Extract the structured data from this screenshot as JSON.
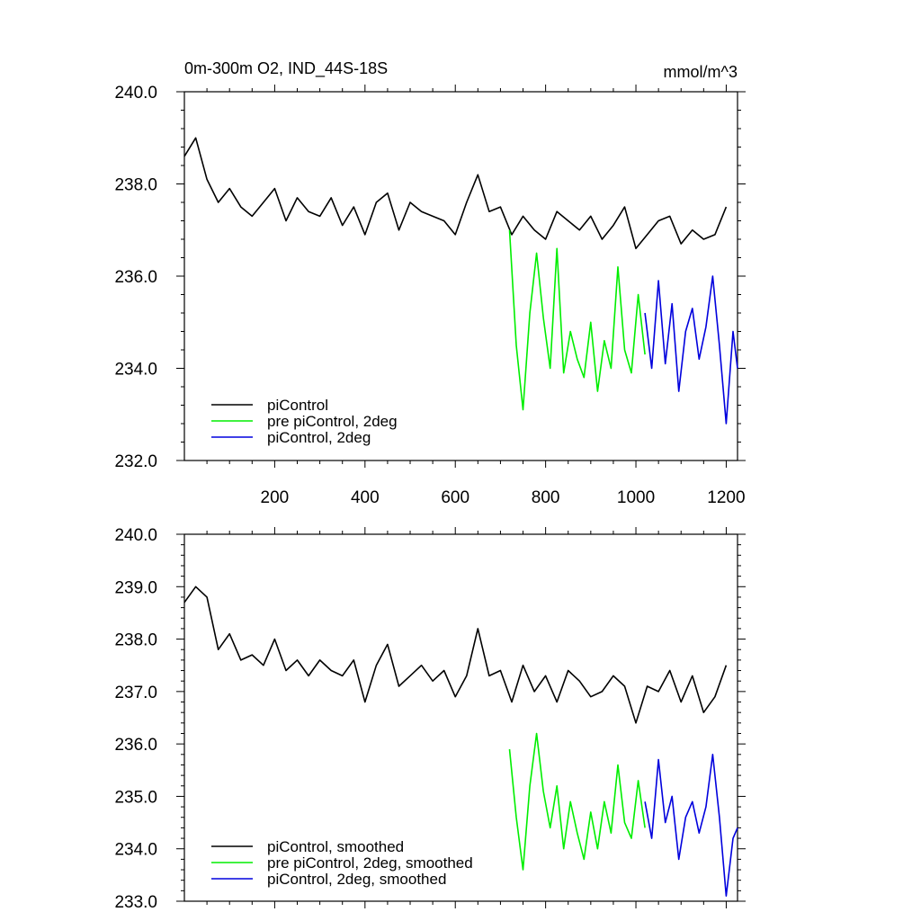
{
  "chart_data": [
    {
      "type": "line",
      "title": "0m-300m O2, IND_44S-18S",
      "units": "mmol/m^3",
      "xlim": [
        0,
        1225
      ],
      "ylim": [
        232.0,
        240.0
      ],
      "xticks": [
        200,
        400,
        600,
        800,
        1000,
        1200
      ],
      "xtick_labels": [
        "200",
        "400",
        "600",
        "800",
        "1000",
        "1200"
      ],
      "yticks": [
        232.0,
        234.0,
        236.0,
        238.0,
        240.0
      ],
      "ytick_labels": [
        "232.0",
        "234.0",
        "236.0",
        "238.0",
        "240.0"
      ],
      "legend": {
        "position": "bottom-left"
      },
      "grid": false,
      "series": [
        {
          "name": "piControl",
          "color": "#000000",
          "x": [
            0,
            25,
            50,
            75,
            100,
            125,
            150,
            175,
            200,
            225,
            250,
            275,
            300,
            325,
            350,
            375,
            400,
            425,
            450,
            475,
            500,
            525,
            550,
            575,
            600,
            625,
            650,
            675,
            700,
            725,
            750,
            775,
            800,
            825,
            850,
            875,
            900,
            925,
            950,
            975,
            1000,
            1025,
            1050,
            1075,
            1100,
            1125,
            1150,
            1175,
            1200
          ],
          "y": [
            238.6,
            239.0,
            238.1,
            237.6,
            237.9,
            237.5,
            237.3,
            237.6,
            237.9,
            237.2,
            237.7,
            237.4,
            237.3,
            237.7,
            237.1,
            237.5,
            236.9,
            237.6,
            237.8,
            237.0,
            237.6,
            237.4,
            237.3,
            237.2,
            236.9,
            237.6,
            238.2,
            237.4,
            237.5,
            236.9,
            237.3,
            237.0,
            236.8,
            237.4,
            237.2,
            237.0,
            237.3,
            236.8,
            237.1,
            237.5,
            236.6,
            236.9,
            237.2,
            237.3,
            236.7,
            237.0,
            236.8,
            236.9,
            237.5
          ]
        },
        {
          "name": "pre piControl, 2deg",
          "color": "#00ee00",
          "x": [
            720,
            735,
            750,
            765,
            780,
            795,
            810,
            825,
            840,
            855,
            870,
            885,
            900,
            915,
            930,
            945,
            960,
            975,
            990,
            1005,
            1020
          ],
          "y": [
            237.0,
            234.5,
            233.1,
            235.2,
            236.5,
            235.1,
            234.0,
            236.6,
            233.9,
            234.8,
            234.2,
            233.8,
            235.0,
            233.5,
            234.6,
            234.0,
            236.2,
            234.4,
            233.9,
            235.6,
            234.3
          ]
        },
        {
          "name": "piControl, 2deg",
          "color": "#0000dd",
          "x": [
            1020,
            1035,
            1050,
            1065,
            1080,
            1095,
            1110,
            1125,
            1140,
            1155,
            1170,
            1185,
            1200,
            1215,
            1225
          ],
          "y": [
            235.2,
            234.0,
            235.9,
            234.1,
            235.4,
            233.5,
            234.8,
            235.3,
            234.2,
            234.9,
            236.0,
            234.5,
            232.8,
            234.8,
            234.0
          ]
        }
      ]
    },
    {
      "type": "line",
      "xlim": [
        0,
        1225
      ],
      "ylim": [
        233.0,
        240.0
      ],
      "xticks": [
        200,
        400,
        600,
        800,
        1000,
        1200
      ],
      "yticks": [
        233.0,
        234.0,
        235.0,
        236.0,
        237.0,
        238.0,
        239.0,
        240.0
      ],
      "ytick_labels": [
        "233.0",
        "234.0",
        "235.0",
        "236.0",
        "237.0",
        "238.0",
        "239.0",
        "240.0"
      ],
      "legend": {
        "position": "bottom-left"
      },
      "grid": false,
      "series": [
        {
          "name": "piControl, smoothed",
          "color": "#000000",
          "x": [
            0,
            25,
            50,
            75,
            100,
            125,
            150,
            175,
            200,
            225,
            250,
            275,
            300,
            325,
            350,
            375,
            400,
            425,
            450,
            475,
            500,
            525,
            550,
            575,
            600,
            625,
            650,
            675,
            700,
            725,
            750,
            775,
            800,
            825,
            850,
            875,
            900,
            925,
            950,
            975,
            1000,
            1025,
            1050,
            1075,
            1100,
            1125,
            1150,
            1175,
            1200
          ],
          "y": [
            238.7,
            239.0,
            238.8,
            237.8,
            238.1,
            237.6,
            237.7,
            237.5,
            238.0,
            237.4,
            237.6,
            237.3,
            237.6,
            237.4,
            237.3,
            237.6,
            236.8,
            237.5,
            237.9,
            237.1,
            237.3,
            237.5,
            237.2,
            237.4,
            236.9,
            237.3,
            238.2,
            237.3,
            237.4,
            236.8,
            237.5,
            237.0,
            237.3,
            236.8,
            237.4,
            237.2,
            236.9,
            237.0,
            237.3,
            237.1,
            236.4,
            237.1,
            237.0,
            237.4,
            236.8,
            237.3,
            236.6,
            236.9,
            237.5
          ]
        },
        {
          "name": "pre piControl, 2deg, smoothed",
          "color": "#00ee00",
          "x": [
            720,
            735,
            750,
            765,
            780,
            795,
            810,
            825,
            840,
            855,
            870,
            885,
            900,
            915,
            930,
            945,
            960,
            975,
            990,
            1005,
            1020
          ],
          "y": [
            235.9,
            234.6,
            233.6,
            235.2,
            236.2,
            235.1,
            234.4,
            235.2,
            234.0,
            234.9,
            234.3,
            233.8,
            234.7,
            234.0,
            234.9,
            234.3,
            235.6,
            234.5,
            234.2,
            235.3,
            234.4
          ]
        },
        {
          "name": "piControl, 2deg, smoothed",
          "color": "#0000dd",
          "x": [
            1020,
            1035,
            1050,
            1065,
            1080,
            1095,
            1110,
            1125,
            1140,
            1155,
            1170,
            1185,
            1200,
            1215,
            1225
          ],
          "y": [
            234.9,
            234.2,
            235.7,
            234.5,
            235.0,
            233.8,
            234.6,
            234.9,
            234.3,
            234.8,
            235.8,
            234.6,
            233.1,
            234.2,
            234.4
          ]
        }
      ]
    }
  ]
}
